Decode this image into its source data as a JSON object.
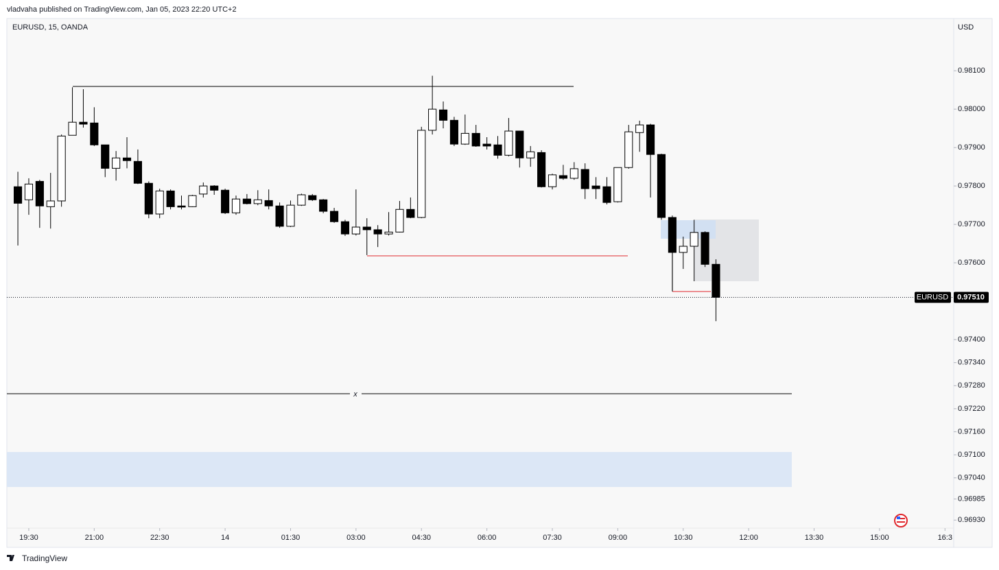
{
  "header": {
    "text": "vladvaha published on TradingView.com, Jan 05, 2023 22:20 UTC+2"
  },
  "footer": {
    "text": "TradingView"
  },
  "chart_data": {
    "type": "candlestick",
    "title": "EURUSD, 15, OANDA",
    "y_axis_label": "USD",
    "annotation": "x",
    "up_color": "#ffffff",
    "down_color": "#000000",
    "x": [
      -1,
      0,
      1,
      2,
      3,
      4,
      5,
      6,
      7,
      8,
      9,
      10,
      11,
      12,
      13,
      14,
      15,
      16,
      17,
      18,
      19,
      20,
      21,
      22,
      23,
      24,
      25,
      26,
      27,
      28,
      29,
      30,
      31,
      32,
      33,
      34,
      35,
      36,
      37,
      38,
      39,
      40,
      41,
      42,
      43,
      44,
      45,
      46,
      47,
      48,
      49,
      50,
      51,
      52,
      53,
      54,
      55,
      56,
      57,
      58,
      59,
      60,
      61,
      62,
      63
    ],
    "open": [
      0.97798,
      0.97764,
      0.97812,
      0.97746,
      0.97761,
      0.97932,
      0.97966,
      0.97964,
      0.97907,
      0.97846,
      0.97873,
      0.97864,
      0.97807,
      0.97727,
      0.97787,
      0.97748,
      0.97746,
      0.97779,
      0.978,
      0.97789,
      0.9773,
      0.97766,
      0.97754,
      0.97762,
      0.97748,
      0.97695,
      0.9775,
      0.97775,
      0.97764,
      0.97734,
      0.97707,
      0.97675,
      0.97693,
      0.97686,
      0.97675,
      0.9768,
      0.97739,
      0.97718,
      0.97945,
      0.97998,
      0.97971,
      0.97909,
      0.97937,
      0.97909,
      0.97907,
      0.9788,
      0.97943,
      0.97873,
      0.97887,
      0.97798,
      0.97827,
      0.9782,
      0.97843,
      0.978,
      0.97798,
      0.97759,
      0.97848,
      0.97939,
      0.97959,
      0.97882,
      0.97718,
      0.97627,
      0.97643,
      0.97679,
      0.97596
    ],
    "high": [
      0.97837,
      0.9782,
      0.97816,
      0.97834,
      0.97934,
      0.98057,
      0.98052,
      0.98005,
      0.97907,
      0.97891,
      0.97927,
      0.97895,
      0.97812,
      0.97793,
      0.97791,
      0.97775,
      0.97777,
      0.97809,
      0.97802,
      0.97793,
      0.97775,
      0.97779,
      0.97789,
      0.97791,
      0.97757,
      0.97762,
      0.9778,
      0.97779,
      0.97766,
      0.97743,
      0.97712,
      0.97791,
      0.97716,
      0.97698,
      0.97732,
      0.97761,
      0.9777,
      0.97954,
      0.98087,
      0.9802,
      0.9798,
      0.97986,
      0.97959,
      0.97927,
      0.9793,
      0.97977,
      0.97943,
      0.97904,
      0.97893,
      0.97832,
      0.97855,
      0.97862,
      0.97859,
      0.97823,
      0.97823,
      0.97848,
      0.97959,
      0.9797,
      0.97962,
      0.97884,
      0.97723,
      0.97668,
      0.97712,
      0.97682,
      0.97609
    ],
    "low": [
      0.97645,
      0.97725,
      0.97691,
      0.97689,
      0.97746,
      0.97932,
      0.97952,
      0.97904,
      0.97823,
      0.97814,
      0.97846,
      0.97805,
      0.97716,
      0.97716,
      0.97739,
      0.97739,
      0.97745,
      0.9777,
      0.97777,
      0.97727,
      0.97725,
      0.97752,
      0.9775,
      0.97739,
      0.97691,
      0.97693,
      0.97748,
      0.97761,
      0.97729,
      0.97704,
      0.9767,
      0.97671,
      0.9762,
      0.97641,
      0.97671,
      0.97679,
      0.97716,
      0.97716,
      0.97934,
      0.9795,
      0.97904,
      0.97907,
      0.97902,
      0.97895,
      0.97871,
      0.97877,
      0.97848,
      0.9785,
      0.97796,
      0.97791,
      0.97816,
      0.97816,
      0.97766,
      0.97766,
      0.97752,
      0.97757,
      0.97845,
      0.97889,
      0.9777,
      0.97712,
      0.97527,
      0.97584,
      0.97552,
      0.97589,
      0.97448
    ],
    "close": [
      0.97755,
      0.97805,
      0.97748,
      0.97761,
      0.9793,
      0.97966,
      0.97961,
      0.97907,
      0.97846,
      0.97873,
      0.97866,
      0.97807,
      0.97727,
      0.97787,
      0.97746,
      0.97745,
      0.97775,
      0.978,
      0.97789,
      0.9773,
      0.97766,
      0.97754,
      0.97764,
      0.97748,
      0.97695,
      0.9775,
      0.97777,
      0.97764,
      0.97734,
      0.97707,
      0.97675,
      0.97693,
      0.97686,
      0.97675,
      0.9768,
      0.97739,
      0.97718,
      0.97945,
      0.98,
      0.97971,
      0.97909,
      0.97937,
      0.97904,
      0.97904,
      0.9788,
      0.97943,
      0.97873,
      0.97889,
      0.97798,
      0.97829,
      0.9782,
      0.97845,
      0.97793,
      0.97793,
      0.97757,
      0.97848,
      0.97941,
      0.97959,
      0.97882,
      0.97718,
      0.97627,
      0.97643,
      0.97679,
      0.97596,
      0.9751
    ],
    "last_price": {
      "name": "EURUSD",
      "value": 0.9751,
      "value_label": "0.97510"
    },
    "xlim": [
      -2.01,
      84.8
    ],
    "xticks": [
      {
        "value": 0,
        "label": "19:30"
      },
      {
        "value": 6,
        "label": "21:00"
      },
      {
        "value": 12,
        "label": "22:30"
      },
      {
        "value": 18,
        "label": "14"
      },
      {
        "value": 24,
        "label": "01:30"
      },
      {
        "value": 30,
        "label": "03:00"
      },
      {
        "value": 36,
        "label": "04:30"
      },
      {
        "value": 42,
        "label": "06:00"
      },
      {
        "value": 48,
        "label": "07:30"
      },
      {
        "value": 54,
        "label": "09:00"
      },
      {
        "value": 60,
        "label": "10:30"
      },
      {
        "value": 66,
        "label": "12:00"
      },
      {
        "value": 72,
        "label": "13:30"
      },
      {
        "value": 78,
        "label": "15:00"
      },
      {
        "value": 84,
        "label": "16:3"
      }
    ],
    "ylim": [
      0.96859,
      0.98236
    ],
    "yticks": [
      {
        "value": 0.981,
        "label": "0.98100"
      },
      {
        "value": 0.98,
        "label": "0.98000"
      },
      {
        "value": 0.979,
        "label": "0.97900"
      },
      {
        "value": 0.978,
        "label": "0.97800"
      },
      {
        "value": 0.977,
        "label": "0.97700"
      },
      {
        "value": 0.976,
        "label": "0.97600"
      },
      {
        "value": 0.974,
        "label": "0.97400"
      },
      {
        "value": 0.9734,
        "label": "0.97340"
      },
      {
        "value": 0.9728,
        "label": "0.97280"
      },
      {
        "value": 0.9722,
        "label": "0.97220"
      },
      {
        "value": 0.9716,
        "label": "0.97160"
      },
      {
        "value": 0.971,
        "label": "0.97100"
      },
      {
        "value": 0.9704,
        "label": "0.97040"
      },
      {
        "value": 0.96985,
        "label": "0.96985"
      },
      {
        "value": 0.9693,
        "label": "0.96930"
      }
    ],
    "grid": false
  }
}
